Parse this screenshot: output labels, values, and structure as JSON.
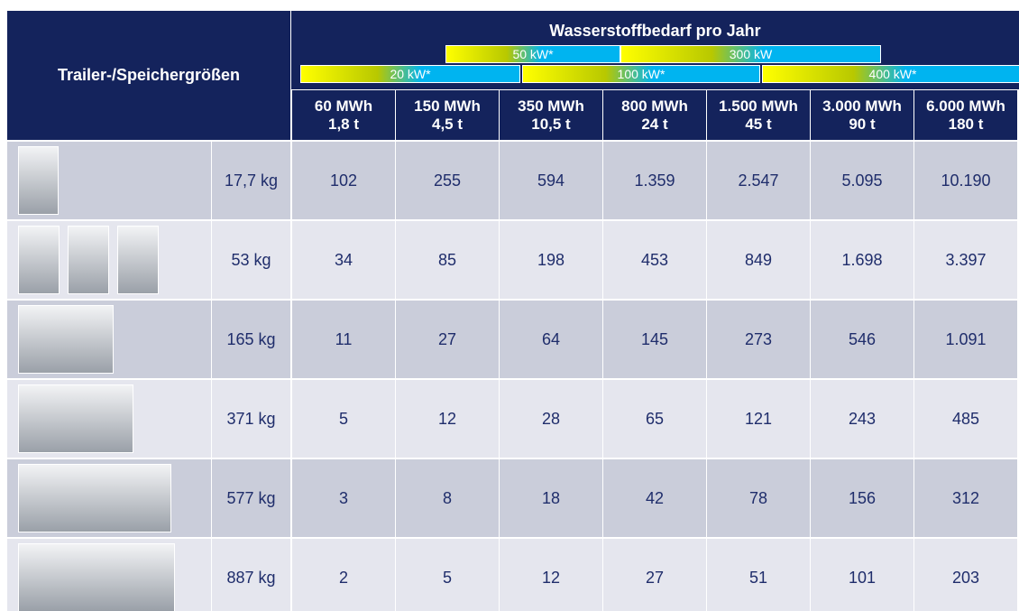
{
  "header": {
    "row_label": "Trailer-/Speichergrößen",
    "title": "Wasserstoffbedarf pro Jahr",
    "power_bands": [
      "50 kW*",
      "300 kW",
      "20 kW*",
      "100 kW*",
      "400 kW*"
    ],
    "columns": [
      [
        "60 MWh",
        "1,8 t"
      ],
      [
        "150 MWh",
        "4,5 t"
      ],
      [
        "350 MWh",
        "10,5 t"
      ],
      [
        "800 MWh",
        "24 t"
      ],
      [
        "1.500 MWh",
        "45 t"
      ],
      [
        "3.000 MWh",
        "90 t"
      ],
      [
        "6.000 MWh",
        "180 t"
      ]
    ]
  },
  "table": {
    "rows": [
      {
        "weight": "17,7 kg",
        "values": [
          "102",
          "255",
          "594",
          "1.359",
          "2.547",
          "5.095",
          "10.190"
        ]
      },
      {
        "weight": "53 kg",
        "values": [
          "34",
          "85",
          "198",
          "453",
          "849",
          "1.698",
          "3.397"
        ]
      },
      {
        "weight": "165 kg",
        "values": [
          "11",
          "27",
          "64",
          "145",
          "273",
          "546",
          "1.091"
        ]
      },
      {
        "weight": "371 kg",
        "values": [
          "5",
          "12",
          "28",
          "65",
          "121",
          "243",
          "485"
        ]
      },
      {
        "weight": "577 kg",
        "values": [
          "3",
          "8",
          "18",
          "42",
          "78",
          "156",
          "312"
        ]
      },
      {
        "weight": "887 kg",
        "values": [
          "2",
          "5",
          "12",
          "27",
          "51",
          "101",
          "203"
        ]
      }
    ]
  }
}
